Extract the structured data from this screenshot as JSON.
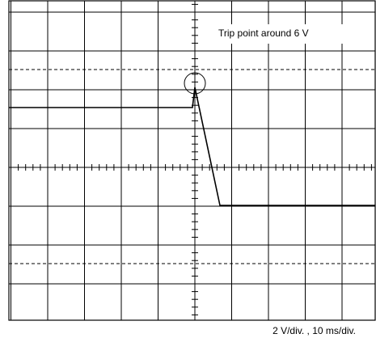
{
  "annotation": "Trip point around 6 V",
  "scale_note": "2 V/div. ,  10 ms/div."
}
